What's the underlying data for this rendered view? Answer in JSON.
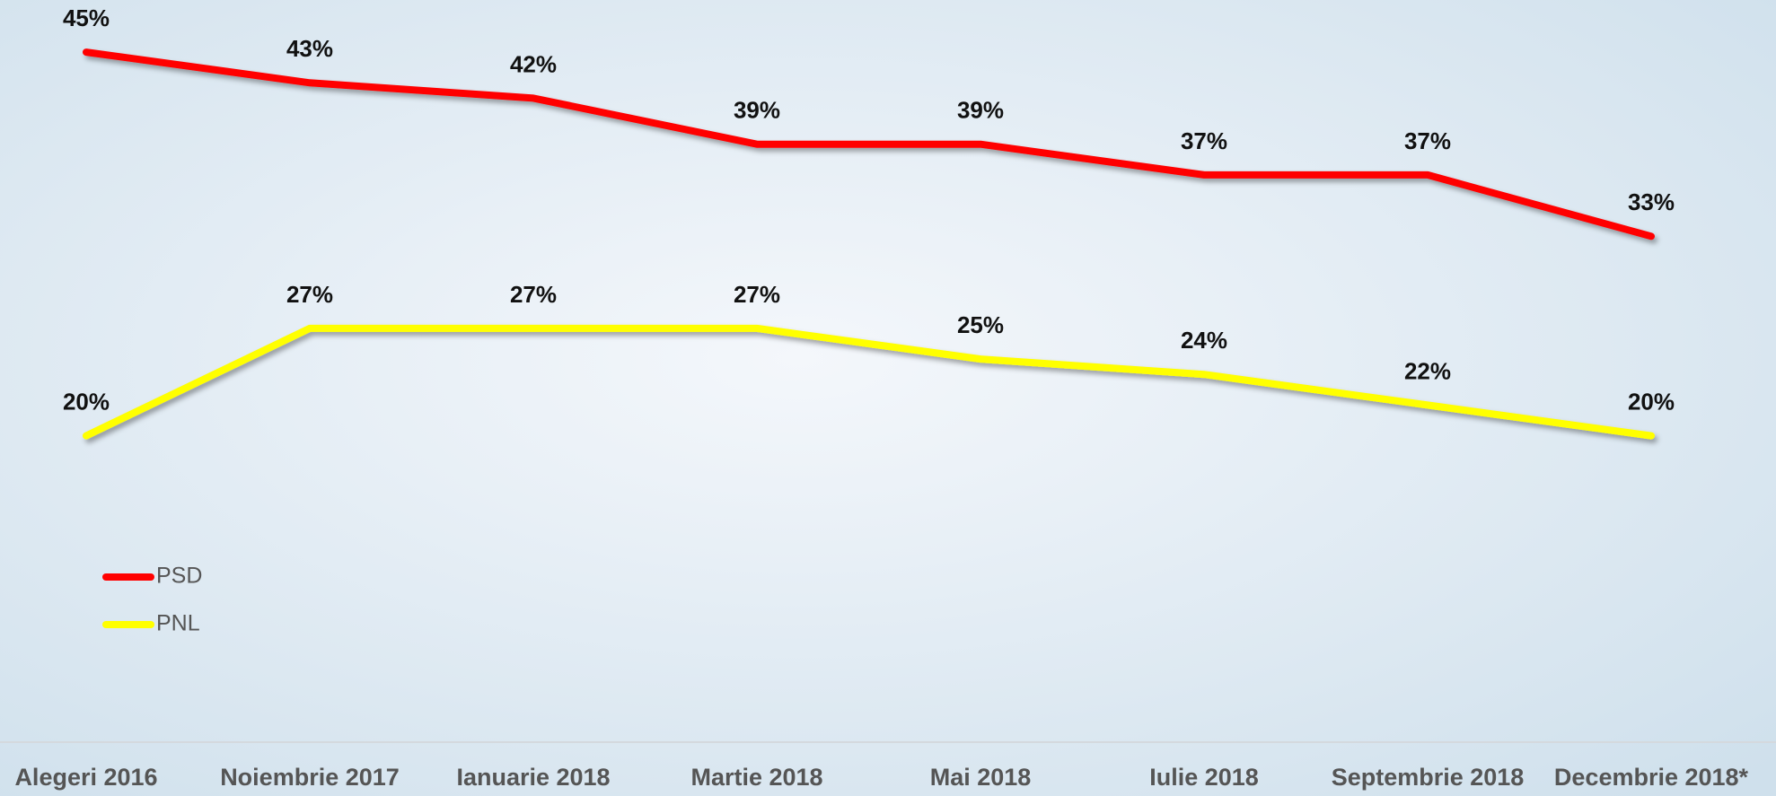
{
  "chart_data": {
    "type": "line",
    "categories": [
      "Alegeri 2016",
      "Noiembrie 2017",
      "Ianuarie 2018",
      "Martie 2018",
      "Mai 2018",
      "Iulie 2018",
      "Septembrie 2018",
      "Decembrie 2018*"
    ],
    "series": [
      {
        "name": "PSD",
        "color": "#ff0000",
        "values": [
          45,
          43,
          42,
          39,
          39,
          37,
          37,
          33
        ],
        "value_labels": [
          "45%",
          "43%",
          "42%",
          "39%",
          "39%",
          "37%",
          "37%",
          "33%"
        ]
      },
      {
        "name": "PNL",
        "color": "#ffff00",
        "values": [
          20,
          27,
          27,
          27,
          25,
          24,
          22,
          20
        ],
        "value_labels": [
          "20%",
          "27%",
          "27%",
          "27%",
          "25%",
          "24%",
          "22%",
          "20%"
        ]
      }
    ],
    "ylim": [
      0,
      50
    ]
  }
}
